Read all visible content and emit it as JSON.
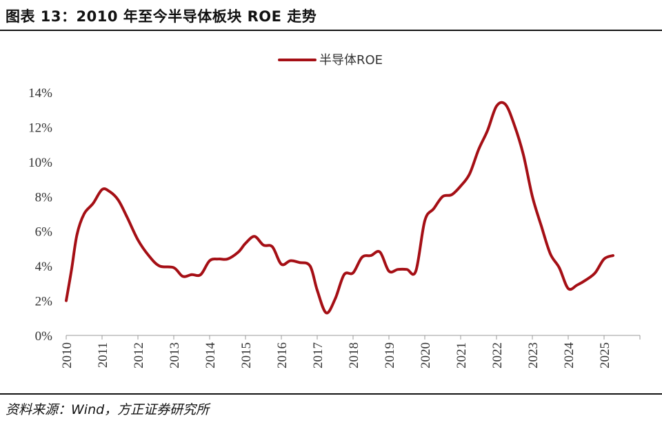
{
  "header": {
    "title": "图表 13：2010 年至今半导体板块 ROE 走势"
  },
  "footer": {
    "source": "资料来源：Wind，方正证券研究所"
  },
  "colors": {
    "series_line": "#A50F15",
    "axis": "#999999",
    "text": "#333333"
  },
  "chart_data": {
    "type": "line",
    "title": "",
    "xlabel": "",
    "ylabel": "",
    "x_ticks": [
      "2010",
      "2011",
      "2012",
      "2013",
      "2014",
      "2015",
      "2016",
      "2017",
      "2018",
      "2019",
      "2020",
      "2021",
      "2022",
      "2023",
      "2024",
      "2025"
    ],
    "y_ticks": [
      "0%",
      "2%",
      "4%",
      "6%",
      "8%",
      "10%",
      "12%",
      "14%"
    ],
    "ylim": [
      0,
      14
    ],
    "xlim": [
      2010,
      2026
    ],
    "grid": false,
    "legend_position": "top-center",
    "series": [
      {
        "name": "半导体ROE",
        "x": [
          2010.0,
          2010.15,
          2010.3,
          2010.5,
          2010.75,
          2011.0,
          2011.2,
          2011.45,
          2011.7,
          2012.0,
          2012.3,
          2012.6,
          2013.0,
          2013.25,
          2013.5,
          2013.75,
          2014.0,
          2014.25,
          2014.5,
          2014.8,
          2015.0,
          2015.25,
          2015.5,
          2015.75,
          2016.0,
          2016.25,
          2016.5,
          2016.8,
          2017.0,
          2017.25,
          2017.5,
          2017.75,
          2018.0,
          2018.25,
          2018.5,
          2018.75,
          2019.0,
          2019.25,
          2019.5,
          2019.75,
          2020.0,
          2020.25,
          2020.5,
          2020.75,
          2021.0,
          2021.25,
          2021.5,
          2021.75,
          2022.0,
          2022.25,
          2022.5,
          2022.75,
          2023.0,
          2023.25,
          2023.5,
          2023.75,
          2024.0,
          2024.25,
          2024.5,
          2024.75,
          2025.0,
          2025.25
        ],
        "values": [
          2.0,
          3.8,
          5.8,
          7.0,
          7.6,
          8.4,
          8.3,
          7.8,
          6.8,
          5.5,
          4.6,
          4.0,
          3.9,
          3.4,
          3.5,
          3.5,
          4.3,
          4.4,
          4.4,
          4.8,
          5.3,
          5.7,
          5.2,
          5.1,
          4.1,
          4.3,
          4.2,
          4.0,
          2.6,
          1.3,
          2.1,
          3.5,
          3.6,
          4.5,
          4.6,
          4.8,
          3.7,
          3.8,
          3.8,
          3.7,
          6.6,
          7.3,
          8.0,
          8.1,
          8.6,
          9.3,
          10.7,
          11.8,
          13.2,
          13.3,
          12.1,
          10.4,
          8.0,
          6.3,
          4.7,
          3.9,
          2.7,
          2.9,
          3.2,
          3.6,
          4.4,
          4.6
        ]
      }
    ]
  }
}
